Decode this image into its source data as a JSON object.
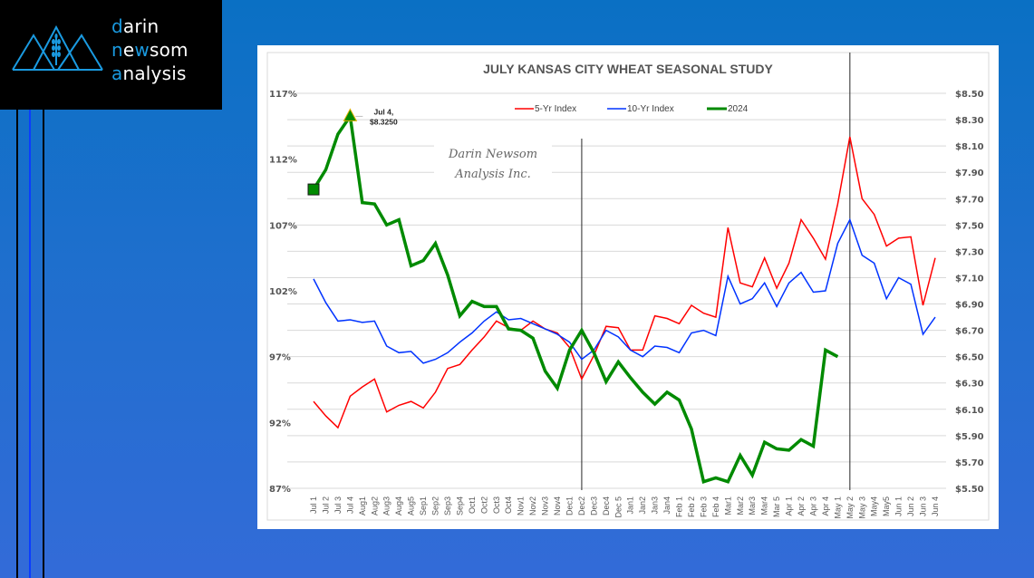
{
  "brand": {
    "line1_accent": "d",
    "line1_rest": "arin",
    "line2_accent1": "n",
    "line2_mid": "e",
    "line2_accent2": "w",
    "line2_rest": "som",
    "line3_accent": "a",
    "line3_rest": "nalysis",
    "accent_color": "#1a9ae0",
    "logo_icon": "mountains-wheat-icon"
  },
  "watermark": {
    "line1": "Darin Newsom",
    "line2": "Analysis Inc."
  },
  "annotation": {
    "line1": "Jul 4,",
    "line2": "$8.3250"
  },
  "colors": {
    "five_yr": "#ff0000",
    "ten_yr": "#0033ff",
    "y2024": "#008a00",
    "background_top": "#0a70c4",
    "background_bottom": "#336bd8"
  },
  "chart_data": {
    "type": "line",
    "title": "JULY KANSAS CITY WHEAT SEASONAL STUDY",
    "xlabel": "",
    "ylabel": "",
    "y_left": {
      "range": [
        87,
        117
      ],
      "ticks": [
        "117%",
        "112%",
        "107%",
        "102%",
        "97%",
        "92%",
        "87%"
      ],
      "tick_values": [
        117,
        112,
        107,
        102,
        97,
        92,
        87
      ]
    },
    "y_right": {
      "range": [
        5.5,
        8.5
      ],
      "ticks": [
        "$8.50",
        "$8.30",
        "$8.10",
        "$7.90",
        "$7.70",
        "$7.50",
        "$7.30",
        "$7.10",
        "$6.90",
        "$6.70",
        "$6.50",
        "$6.30",
        "$6.10",
        "$5.90",
        "$5.70",
        "$5.50"
      ],
      "tick_values": [
        8.5,
        8.3,
        8.1,
        7.9,
        7.7,
        7.5,
        7.3,
        7.1,
        6.9,
        6.7,
        6.5,
        6.3,
        6.1,
        5.9,
        5.7,
        5.5
      ]
    },
    "grid": true,
    "legend_position": "top",
    "vertical_markers": [
      "Dec2",
      "May 2"
    ],
    "categories": [
      "Jul 1",
      "Jul 2",
      "Jul 3",
      "Jul 4",
      "Aug1",
      "Aug2",
      "Aug3",
      "Aug4",
      "Aug5",
      "Sep1",
      "Sep2",
      "Sep3",
      "Sep4",
      "Oct1",
      "Oct2",
      "Oct3",
      "Oct4",
      "Nov1",
      "Nov2",
      "Nov3",
      "Nov4",
      "Dec1",
      "Dec2",
      "Dec3",
      "Dec4",
      "Dec 5",
      "Jan1",
      "Jan2",
      "Jan3",
      "Jan4",
      "Feb 1",
      "Feb 2",
      "Feb 3",
      "Feb 4",
      "Mar1",
      "Mar2",
      "Mar3",
      "Mar4",
      "Mar 5",
      "Apr 1",
      "Apr 2",
      "Apr 3",
      "Apr 4",
      "May 1",
      "May 2",
      "May 3",
      "May4",
      "May5",
      "Jun 1",
      "Jun 2",
      "Jun 3",
      "Jun 4"
    ],
    "series": [
      {
        "name": "5-Yr Index",
        "axis": "left",
        "unit": "%",
        "values": [
          93.6,
          92.5,
          91.6,
          94.0,
          94.7,
          95.3,
          92.8,
          93.3,
          93.6,
          93.1,
          94.3,
          96.1,
          96.4,
          97.5,
          98.5,
          99.7,
          99.2,
          99.0,
          99.7,
          99.1,
          98.8,
          97.7,
          95.3,
          97.1,
          99.3,
          99.2,
          97.5,
          97.5,
          100.1,
          99.9,
          99.5,
          100.9,
          100.3,
          100.0,
          106.8,
          102.6,
          102.3,
          104.5,
          102.2,
          104.1,
          107.4,
          106.0,
          104.4,
          108.6,
          113.7,
          109.0,
          107.8,
          105.4,
          106.0,
          106.1,
          100.9,
          104.5
        ]
      },
      {
        "name": "10-Yr Index",
        "axis": "left",
        "unit": "%",
        "values": [
          102.9,
          101.1,
          99.7,
          99.8,
          99.6,
          99.7,
          97.8,
          97.3,
          97.4,
          96.5,
          96.8,
          97.3,
          98.1,
          98.8,
          99.7,
          100.4,
          99.8,
          99.9,
          99.5,
          99.1,
          98.7,
          98.1,
          96.8,
          97.5,
          99.0,
          98.5,
          97.5,
          97.0,
          97.8,
          97.7,
          97.3,
          98.8,
          99.0,
          98.6,
          103.1,
          101.0,
          101.4,
          102.6,
          100.8,
          102.6,
          103.4,
          101.9,
          102.0,
          105.6,
          107.4,
          104.7,
          104.1,
          101.4,
          103.0,
          102.5,
          98.7,
          100.0
        ]
      },
      {
        "name": "2024",
        "axis": "right",
        "unit": "$",
        "values": [
          7.77,
          7.92,
          8.19,
          8.325,
          7.67,
          7.66,
          7.5,
          7.54,
          7.19,
          7.23,
          7.36,
          7.12,
          6.81,
          6.92,
          6.88,
          6.88,
          6.71,
          6.7,
          6.64,
          6.39,
          6.26,
          6.55,
          6.7,
          6.53,
          6.31,
          6.46,
          6.34,
          6.23,
          6.14,
          6.23,
          6.17,
          5.95,
          5.55,
          5.58,
          5.55,
          5.75,
          5.6,
          5.85,
          5.8,
          5.79,
          5.87,
          5.82,
          6.55,
          6.5,
          null,
          null,
          null,
          null,
          null,
          null,
          null,
          null
        ]
      }
    ],
    "annotations": [
      {
        "category": "Jul 4",
        "series": "2024",
        "text": "Jul 4, $8.3250",
        "marker": "triangle"
      },
      {
        "category": "Jul 1",
        "series": "2024",
        "marker": "square"
      }
    ]
  }
}
